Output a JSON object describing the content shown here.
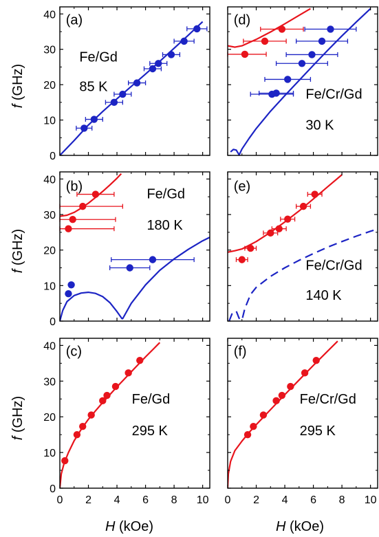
{
  "figure": {
    "xlabel_var": "H",
    "xlabel_unit": " (kOe)",
    "ylabel_var": "f",
    "ylabel_unit": " (GHz)",
    "colors": {
      "red": "#e8141c",
      "blue": "#1c24c4"
    }
  },
  "chart_data": [
    {
      "id": "a",
      "type": "scatter",
      "label": "(a)",
      "sample": "Fe/Gd",
      "temperature": "85 K",
      "xlim": [
        0,
        10.5
      ],
      "ylim": [
        0,
        42
      ],
      "xticks": [
        0,
        2,
        4,
        6,
        8,
        10
      ],
      "yticks": [
        0,
        10,
        20,
        30,
        40
      ],
      "series": [
        {
          "color": "blue",
          "points": [
            {
              "x": 1.7,
              "y": 7.7,
              "xerr": 0.55
            },
            {
              "x": 2.4,
              "y": 10.2,
              "xerr": 0.6
            },
            {
              "x": 3.8,
              "y": 15.0,
              "xerr": 0.6
            },
            {
              "x": 4.4,
              "y": 17.3,
              "xerr": 0.6
            },
            {
              "x": 5.4,
              "y": 20.5,
              "xerr": 0.6
            },
            {
              "x": 6.5,
              "y": 24.5,
              "xerr": 0.6
            },
            {
              "x": 6.9,
              "y": 26.0,
              "xerr": 0.6
            },
            {
              "x": 7.8,
              "y": 28.5,
              "xerr": 0.6
            },
            {
              "x": 8.7,
              "y": 32.3,
              "xerr": 0.7
            },
            {
              "x": 9.6,
              "y": 35.8,
              "xerr": 0.7
            }
          ]
        }
      ],
      "curves": [
        {
          "color": "blue",
          "dash": false,
          "points": [
            [
              0,
              0
            ],
            [
              1,
              4.2
            ],
            [
              2,
              8.6
            ],
            [
              3,
              12.4
            ],
            [
              4,
              16
            ],
            [
              5,
              19.5
            ],
            [
              6,
              23
            ],
            [
              7,
              26.6
            ],
            [
              8,
              30.3
            ],
            [
              9,
              34
            ],
            [
              10,
              37.8
            ]
          ]
        }
      ]
    },
    {
      "id": "b",
      "type": "scatter",
      "label": "(b)",
      "sample": "Fe/Gd",
      "temperature": "180 K",
      "xlim": [
        0,
        10.5
      ],
      "ylim": [
        0,
        42
      ],
      "xticks": [
        0,
        2,
        4,
        6,
        8,
        10
      ],
      "yticks": [
        0,
        10,
        20,
        30,
        40
      ],
      "series": [
        {
          "color": "red",
          "points": [
            {
              "x": 2.5,
              "y": 35.7,
              "xerr": 1.3
            },
            {
              "x": 1.6,
              "y": 32.3,
              "xerr": 2.8
            },
            {
              "x": 0.9,
              "y": 28.6,
              "xerr": 3.0
            },
            {
              "x": 0.6,
              "y": 26.0,
              "xerr": 3.2
            }
          ]
        },
        {
          "color": "blue",
          "points": [
            {
              "x": 6.5,
              "y": 17.3,
              "xerr": 2.9
            },
            {
              "x": 4.9,
              "y": 15.0,
              "xerr": 1.4
            },
            {
              "x": 0.8,
              "y": 10.2,
              "xerr": 0
            },
            {
              "x": 0.6,
              "y": 7.7,
              "xerr": 0
            }
          ]
        }
      ],
      "curves": [
        {
          "color": "red",
          "dash": false,
          "points": [
            [
              0,
              29.5
            ],
            [
              0.5,
              29.8
            ],
            [
              1,
              30.6
            ],
            [
              1.5,
              31.8
            ],
            [
              2,
              33.2
            ],
            [
              2.5,
              34.8
            ],
            [
              3,
              36.5
            ],
            [
              3.5,
              38.3
            ],
            [
              4,
              40.2
            ],
            [
              4.3,
              41.5
            ]
          ]
        },
        {
          "color": "blue",
          "dash": false,
          "points": [
            [
              0,
              0
            ],
            [
              0.2,
              3
            ],
            [
              0.5,
              5.5
            ],
            [
              1,
              7.2
            ],
            [
              1.5,
              7.9
            ],
            [
              2,
              8.1
            ],
            [
              2.5,
              7.8
            ],
            [
              3,
              6.9
            ],
            [
              3.5,
              5.2
            ],
            [
              4,
              2.7
            ],
            [
              4.35,
              0.7
            ],
            [
              4.4,
              0.7
            ],
            [
              5,
              5
            ],
            [
              6,
              10.2
            ],
            [
              7,
              14.3
            ],
            [
              8,
              17.5
            ],
            [
              9,
              20.2
            ],
            [
              10,
              22.6
            ],
            [
              10.5,
              23.6
            ]
          ]
        }
      ]
    },
    {
      "id": "c",
      "type": "scatter",
      "label": "(c)",
      "sample": "Fe/Gd",
      "temperature": "295 K",
      "xlim": [
        0,
        10.5
      ],
      "ylim": [
        0,
        42
      ],
      "xticks": [
        0,
        2,
        4,
        6,
        8,
        10
      ],
      "yticks": [
        0,
        10,
        20,
        30,
        40
      ],
      "series": [
        {
          "color": "red",
          "points": [
            {
              "x": 0.35,
              "y": 7.7,
              "xerr": 0
            },
            {
              "x": 1.2,
              "y": 15.0,
              "xerr": 0
            },
            {
              "x": 1.6,
              "y": 17.3,
              "xerr": 0
            },
            {
              "x": 2.2,
              "y": 20.5,
              "xerr": 0
            },
            {
              "x": 3.0,
              "y": 24.5,
              "xerr": 0
            },
            {
              "x": 3.3,
              "y": 26.0,
              "xerr": 0
            },
            {
              "x": 3.9,
              "y": 28.5,
              "xerr": 0
            },
            {
              "x": 4.8,
              "y": 32.3,
              "xerr": 0
            },
            {
              "x": 5.6,
              "y": 35.8,
              "xerr": 0
            }
          ]
        }
      ],
      "curves": [
        {
          "color": "red",
          "dash": false,
          "points": [
            [
              0,
              0
            ],
            [
              0.1,
              4
            ],
            [
              0.3,
              7
            ],
            [
              0.6,
              10
            ],
            [
              1,
              13.3
            ],
            [
              1.5,
              16.5
            ],
            [
              2,
              19.3
            ],
            [
              2.5,
              21.7
            ],
            [
              3,
              24
            ],
            [
              3.5,
              26.2
            ],
            [
              4,
              28.4
            ],
            [
              4.5,
              30.5
            ],
            [
              5,
              32.6
            ],
            [
              5.5,
              34.7
            ],
            [
              6,
              36.8
            ],
            [
              6.5,
              38.8
            ],
            [
              7,
              40.8
            ]
          ]
        }
      ]
    },
    {
      "id": "d",
      "type": "scatter",
      "label": "(d)",
      "sample": "Fe/Cr/Gd",
      "temperature": "30 K",
      "xlim": [
        0,
        10.5
      ],
      "ylim": [
        0,
        42
      ],
      "xticks": [
        0,
        2,
        4,
        6,
        8,
        10
      ],
      "yticks": [
        0,
        10,
        20,
        30,
        40
      ],
      "series": [
        {
          "color": "red",
          "points": [
            {
              "x": 3.8,
              "y": 35.7,
              "xerr": 1.5
            },
            {
              "x": 2.6,
              "y": 32.3,
              "xerr": 1.5
            },
            {
              "x": 1.2,
              "y": 28.6,
              "xerr": 1.5
            }
          ]
        },
        {
          "color": "blue",
          "points": [
            {
              "x": 7.2,
              "y": 35.7,
              "xerr": 1.8
            },
            {
              "x": 6.6,
              "y": 32.3,
              "xerr": 1.8
            },
            {
              "x": 5.9,
              "y": 28.5,
              "xerr": 1.8
            },
            {
              "x": 5.2,
              "y": 26.0,
              "xerr": 1.8
            },
            {
              "x": 4.2,
              "y": 21.5,
              "xerr": 1.6
            },
            {
              "x": 3.1,
              "y": 17.3,
              "xerr": 1.5
            },
            {
              "x": 3.4,
              "y": 17.6,
              "xerr": 1.2
            }
          ]
        }
      ],
      "curves": [
        {
          "color": "red",
          "dash": false,
          "points": [
            [
              0,
              31
            ],
            [
              0.5,
              30.6
            ],
            [
              1,
              31
            ],
            [
              2,
              32.8
            ],
            [
              3,
              34.9
            ],
            [
              4,
              37.2
            ],
            [
              5,
              39.6
            ],
            [
              5.8,
              41.5
            ]
          ]
        },
        {
          "color": "blue",
          "dash": false,
          "points": [
            [
              0.2,
              1
            ],
            [
              0.4,
              1.7
            ],
            [
              0.6,
              1.5
            ],
            [
              0.75,
              0.5
            ],
            [
              0.8,
              0.1
            ],
            [
              1,
              1.8
            ],
            [
              1.5,
              4.8
            ],
            [
              2,
              7.6
            ],
            [
              3,
              12.5
            ],
            [
              4,
              16.9
            ],
            [
              5,
              21.2
            ],
            [
              6,
              25.5
            ],
            [
              7,
              29.7
            ],
            [
              8,
              33.8
            ],
            [
              9,
              37.7
            ],
            [
              10,
              41.5
            ]
          ]
        }
      ]
    },
    {
      "id": "e",
      "type": "scatter",
      "label": "(e)",
      "sample": "Fe/Cr/Gd",
      "temperature": "140 K",
      "xlim": [
        0,
        10.5
      ],
      "ylim": [
        0,
        42
      ],
      "xticks": [
        0,
        2,
        4,
        6,
        8,
        10
      ],
      "yticks": [
        0,
        10,
        20,
        30,
        40
      ],
      "series": [
        {
          "color": "red",
          "points": [
            {
              "x": 6.1,
              "y": 35.7,
              "xerr": 0.5
            },
            {
              "x": 5.3,
              "y": 32.3,
              "xerr": 0.5
            },
            {
              "x": 4.2,
              "y": 28.7,
              "xerr": 0.5
            },
            {
              "x": 3.6,
              "y": 26.0,
              "xerr": 0.5
            },
            {
              "x": 3.0,
              "y": 24.8,
              "xerr": 0.5
            },
            {
              "x": 1.6,
              "y": 20.5,
              "xerr": 0.4
            },
            {
              "x": 1.0,
              "y": 17.3,
              "xerr": 0.4
            }
          ]
        }
      ],
      "curves": [
        {
          "color": "red",
          "dash": false,
          "points": [
            [
              0,
              19.4
            ],
            [
              0.5,
              19.8
            ],
            [
              1,
              20.3
            ],
            [
              2,
              22.4
            ],
            [
              3,
              25
            ],
            [
              4,
              27.9
            ],
            [
              5,
              31
            ],
            [
              6,
              34.4
            ],
            [
              7,
              37.8
            ],
            [
              8,
              41.2
            ]
          ]
        },
        {
          "color": "blue",
          "dash": true,
          "points": [
            [
              0.1,
              0
            ],
            [
              0.3,
              2
            ],
            [
              0.6,
              2.8
            ],
            [
              0.8,
              0.8
            ],
            [
              1,
              0.3
            ],
            [
              1.2,
              3.5
            ],
            [
              1.6,
              7.5
            ],
            [
              2,
              9.5
            ],
            [
              3,
              12.6
            ],
            [
              4,
              15
            ],
            [
              5,
              17.1
            ],
            [
              6,
              19
            ],
            [
              7,
              20.8
            ],
            [
              8,
              22.4
            ],
            [
              9,
              23.9
            ],
            [
              10,
              25.3
            ],
            [
              10.5,
              25.9
            ]
          ]
        }
      ]
    },
    {
      "id": "f",
      "type": "scatter",
      "label": "(f)",
      "sample": "Fe/Cr/Gd",
      "temperature": "295 K",
      "xlim": [
        0,
        10.5
      ],
      "ylim": [
        0,
        42
      ],
      "xticks": [
        0,
        2,
        4,
        6,
        8,
        10
      ],
      "yticks": [
        0,
        10,
        20,
        30,
        40
      ],
      "series": [
        {
          "color": "red",
          "points": [
            {
              "x": 1.4,
              "y": 15.0,
              "xerr": 0
            },
            {
              "x": 1.8,
              "y": 17.3,
              "xerr": 0
            },
            {
              "x": 2.5,
              "y": 20.5,
              "xerr": 0
            },
            {
              "x": 3.4,
              "y": 24.5,
              "xerr": 0
            },
            {
              "x": 3.8,
              "y": 26.0,
              "xerr": 0
            },
            {
              "x": 4.4,
              "y": 28.5,
              "xerr": 0
            },
            {
              "x": 5.4,
              "y": 32.3,
              "xerr": 0
            },
            {
              "x": 6.2,
              "y": 35.8,
              "xerr": 0
            }
          ]
        }
      ],
      "curves": [
        {
          "color": "red",
          "dash": false,
          "points": [
            [
              0,
              0
            ],
            [
              0.05,
              4
            ],
            [
              0.2,
              7.5
            ],
            [
              0.5,
              10.5
            ],
            [
              1,
              13.2
            ],
            [
              1.5,
              15.6
            ],
            [
              2,
              17.8
            ],
            [
              3,
              22
            ],
            [
              4,
              26.2
            ],
            [
              5,
              30.3
            ],
            [
              6,
              34.4
            ],
            [
              7,
              38.4
            ],
            [
              7.7,
              41.2
            ]
          ]
        }
      ]
    }
  ]
}
